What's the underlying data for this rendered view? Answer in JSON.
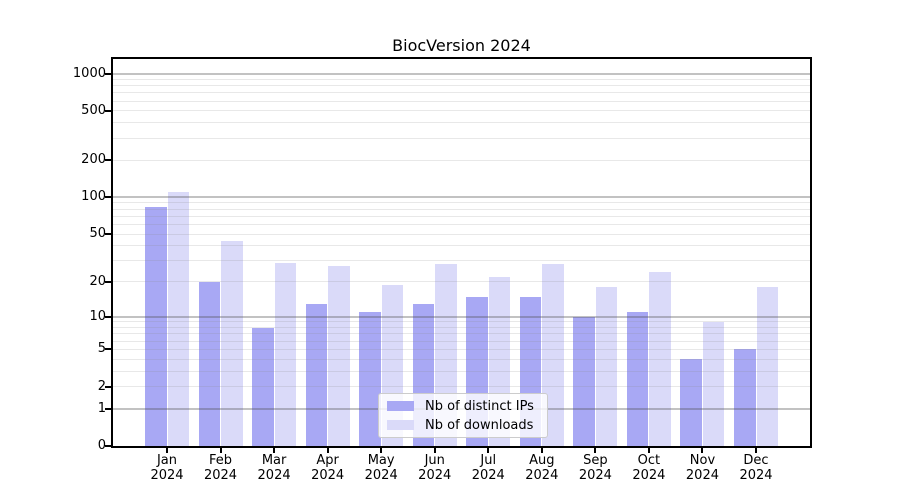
{
  "chart_data": {
    "type": "bar",
    "title": "BiocVersion 2024",
    "categories": [
      "Jan",
      "Feb",
      "Mar",
      "Apr",
      "May",
      "Jun",
      "Jul",
      "Aug",
      "Sep",
      "Oct",
      "Nov",
      "Dec"
    ],
    "category_year": "2024",
    "series": [
      {
        "name": "Nb of distinct IPs",
        "color": "#a8a8f4",
        "values": [
          83,
          20,
          8,
          13,
          11,
          13,
          15,
          15,
          10,
          11,
          4,
          5
        ]
      },
      {
        "name": "Nb of downloads",
        "color": "#dadaf9",
        "values": [
          110,
          44,
          29,
          27,
          19,
          28,
          22,
          28,
          18,
          24,
          9,
          18
        ]
      }
    ],
    "xlabel": "",
    "ylabel": "",
    "yscale": "log1p",
    "yticks": [
      0,
      1,
      2,
      5,
      10,
      20,
      50,
      100,
      200,
      500,
      1000
    ],
    "major_gridlines": [
      1,
      10,
      100,
      1000
    ],
    "ylim": [
      0,
      1310
    ],
    "grid": true,
    "legend_position": "lower center"
  }
}
